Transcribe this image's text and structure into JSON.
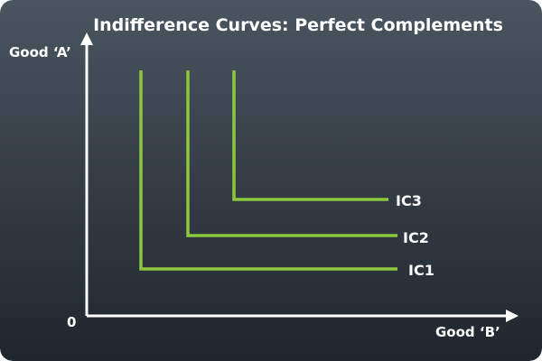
{
  "title": "Indifference Curves: Perfect Complements",
  "axes": {
    "y_label": "Good ‘A’",
    "x_label": "Good ‘B’",
    "origin_label": "0"
  },
  "colors": {
    "background_top": "#4a5560",
    "background_bottom": "#1f262d",
    "curve": "#8dc63f",
    "axis": "#ffffff",
    "text": "#ffffff"
  },
  "curves": [
    {
      "label": "IC1"
    },
    {
      "label": "IC2"
    },
    {
      "label": "IC3"
    }
  ]
}
